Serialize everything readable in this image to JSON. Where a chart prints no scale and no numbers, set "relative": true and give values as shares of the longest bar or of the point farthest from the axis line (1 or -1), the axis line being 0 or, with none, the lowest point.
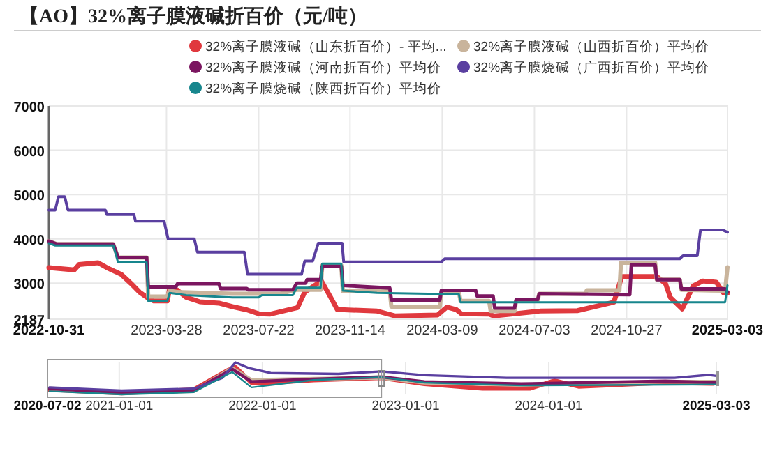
{
  "chart_data": [
    {
      "type": "line",
      "title": "【AO】32%离子膜液碱折百价（元/吨）",
      "legend": "top",
      "grid": true,
      "xlim": [
        "2022-10-31",
        "2025-03-03"
      ],
      "xticks": [
        {
          "value": "2022-10-31",
          "label": "2022-10-31"
        },
        {
          "value": "2023-03-28",
          "label": "2023-03-28"
        },
        {
          "value": "2023-07-22",
          "label": "2023-07-22"
        },
        {
          "value": "2023-11-14",
          "label": "2023-11-14"
        },
        {
          "value": "2024-03-09",
          "label": "2024-03-09"
        },
        {
          "value": "2024-07-03",
          "label": "2024-07-03"
        },
        {
          "value": "2024-10-27",
          "label": "2024-10-27"
        },
        {
          "value": "2025-03-03",
          "label": "2025-03-03"
        }
      ],
      "ylim": [
        2187,
        7000
      ],
      "yticks": [
        2187,
        3000,
        4000,
        5000,
        6000,
        7000
      ],
      "series": [
        {
          "name": "32%离子膜液碱（山东折百价）- 平均...",
          "color": "#e0393e",
          "x": [
            "2022-10-31",
            "2022-12-02",
            "2022-12-08",
            "2023-01-01",
            "2023-01-12",
            "2023-01-30",
            "2023-02-11",
            "2023-02-22",
            "2023-03-06",
            "2023-03-12",
            "2023-03-29",
            "2023-04-01",
            "2023-04-10",
            "2023-04-22",
            "2023-05-09",
            "2023-06-02",
            "2023-06-19",
            "2023-07-07",
            "2023-07-22",
            "2023-08-05",
            "2023-08-17",
            "2023-09-09",
            "2023-09-18",
            "2023-10-09",
            "2023-10-20",
            "2023-10-29",
            "2023-11-07",
            "2023-12-18",
            "2024-01-10",
            "2024-03-03",
            "2024-03-15",
            "2024-03-27",
            "2024-04-02",
            "2024-05-07",
            "2024-05-13",
            "2024-07-10",
            "2024-08-26",
            "2024-10-11",
            "2024-10-21",
            "2024-12-04",
            "2024-12-15",
            "2024-12-21",
            "2025-01-05",
            "2025-01-19",
            "2025-01-31",
            "2025-02-17",
            "2025-02-26",
            "2025-03-03"
          ],
          "values": [
            3350,
            3300,
            3420,
            3460,
            3350,
            3200,
            3000,
            2800,
            2650,
            2600,
            2600,
            2880,
            2850,
            2680,
            2580,
            2550,
            2470,
            2400,
            2310,
            2300,
            2350,
            2450,
            2800,
            3050,
            2700,
            2400,
            2400,
            2370,
            2260,
            2280,
            2460,
            2400,
            2310,
            2300,
            2260,
            2370,
            2380,
            2570,
            3150,
            3150,
            2990,
            2680,
            2420,
            2940,
            3050,
            3020,
            2780,
            2780
          ]
        },
        {
          "name": "32%离子膜液碱（山西折百价）平均价",
          "color": "#c9b49c",
          "x": [
            "2022-10-31",
            "2022-11-10",
            "2023-01-20",
            "2023-01-26",
            "2023-03-03",
            "2023-03-05",
            "2023-03-29",
            "2023-04-01",
            "2023-04-10",
            "2023-06-19",
            "2023-08-17",
            "2023-09-08",
            "2023-10-08",
            "2023-10-10",
            "2023-11-03",
            "2023-11-05",
            "2024-01-03",
            "2024-01-05",
            "2024-03-06",
            "2024-03-08",
            "2024-03-30",
            "2024-04-01",
            "2024-05-07",
            "2024-05-09",
            "2024-06-08",
            "2024-06-10",
            "2024-07-07",
            "2024-07-09",
            "2024-09-05",
            "2024-09-07",
            "2024-10-18",
            "2024-10-20",
            "2024-12-02",
            "2024-12-04",
            "2025-01-02",
            "2025-01-04",
            "2025-02-28",
            "2025-03-03"
          ],
          "values": [
            3950,
            3880,
            3880,
            3580,
            3580,
            2700,
            2700,
            2830,
            2800,
            2760,
            2760,
            2850,
            2850,
            3400,
            3400,
            2820,
            2820,
            2470,
            2470,
            2800,
            2800,
            2600,
            2600,
            2370,
            2370,
            2600,
            2600,
            2760,
            2760,
            2840,
            2840,
            3460,
            3460,
            3080,
            3080,
            2850,
            2830,
            3360
          ]
        },
        {
          "name": "32%离子膜液碱（河南折百价）平均价",
          "color": "#7b1660",
          "x": [
            "2022-10-31",
            "2022-11-10",
            "2023-01-20",
            "2023-01-26",
            "2023-03-03",
            "2023-03-05",
            "2023-04-09",
            "2023-04-11",
            "2023-06-02",
            "2023-06-04",
            "2023-07-07",
            "2023-07-09",
            "2023-09-03",
            "2023-09-08",
            "2023-09-19",
            "2023-09-21",
            "2023-10-08",
            "2023-10-10",
            "2023-11-03",
            "2023-11-05",
            "2024-01-03",
            "2024-01-05",
            "2024-03-06",
            "2024-03-08",
            "2024-04-20",
            "2024-04-22",
            "2024-05-12",
            "2024-05-14",
            "2024-06-08",
            "2024-06-10",
            "2024-07-07",
            "2024-07-09",
            "2024-10-31",
            "2024-11-02",
            "2024-12-02",
            "2024-12-04",
            "2025-01-02",
            "2025-01-04",
            "2025-02-28",
            "2025-03-03"
          ],
          "values": [
            3950,
            3880,
            3880,
            3580,
            3580,
            2920,
            2920,
            2990,
            2990,
            2880,
            2880,
            2850,
            2850,
            3000,
            3000,
            3080,
            3080,
            3380,
            3380,
            2950,
            2890,
            2620,
            2620,
            2840,
            2840,
            2710,
            2710,
            2440,
            2440,
            2630,
            2630,
            2760,
            2740,
            3410,
            3410,
            3080,
            3080,
            2870,
            2870,
            2800
          ]
        },
        {
          "name": "32%离子膜烧碱（广西折百价）平均价",
          "color": "#5a3fa0",
          "x": [
            "2022-10-31",
            "2022-11-08",
            "2022-11-12",
            "2022-11-20",
            "2022-11-24",
            "2023-01-10",
            "2023-01-12",
            "2023-02-15",
            "2023-02-17",
            "2023-03-25",
            "2023-03-30",
            "2023-05-02",
            "2023-05-06",
            "2023-07-04",
            "2023-07-08",
            "2023-09-14",
            "2023-09-18",
            "2023-09-28",
            "2023-10-05",
            "2023-11-04",
            "2023-11-06",
            "2024-03-08",
            "2024-03-12",
            "2025-01-02",
            "2025-01-06",
            "2025-01-24",
            "2025-01-28",
            "2025-02-25",
            "2025-03-03"
          ],
          "values": [
            4650,
            4650,
            4950,
            4950,
            4650,
            4650,
            4550,
            4550,
            4400,
            4400,
            4000,
            4000,
            3700,
            3700,
            3200,
            3200,
            3500,
            3500,
            3900,
            3900,
            3480,
            3480,
            3550,
            3550,
            3620,
            3620,
            4200,
            4200,
            4150
          ]
        },
        {
          "name": "32%离子膜烧碱（陕西折百价）平均价",
          "color": "#17868d",
          "x": [
            "2022-10-31",
            "2022-11-08",
            "2023-01-20",
            "2023-01-26",
            "2023-03-03",
            "2023-03-05",
            "2023-03-29",
            "2023-04-01",
            "2023-04-22",
            "2023-06-19",
            "2023-07-22",
            "2023-07-26",
            "2023-09-03",
            "2023-09-08",
            "2023-10-08",
            "2023-10-10",
            "2023-11-03",
            "2023-11-05",
            "2023-12-18",
            "2024-03-30",
            "2024-04-01",
            "2025-02-28",
            "2025-03-03"
          ],
          "values": [
            3900,
            3850,
            3850,
            3470,
            3470,
            2600,
            2600,
            2780,
            2730,
            2680,
            2680,
            2730,
            2730,
            2900,
            2900,
            3440,
            3440,
            2830,
            2780,
            2750,
            2570,
            2570,
            2950
          ]
        }
      ]
    },
    {
      "type": "line",
      "relative": true,
      "grid": "x",
      "xlim": [
        "2020-07-02",
        "2025-03-03"
      ],
      "xticks": [
        {
          "value": "2020-07-02",
          "label": "2020-07-02"
        },
        {
          "value": "2021-01-01",
          "label": "2021-01-01"
        },
        {
          "value": "2022-01-01",
          "label": "2022-01-01"
        },
        {
          "value": "2023-01-01",
          "label": "2023-01-01"
        },
        {
          "value": "2024-01-01",
          "label": "2024-01-01"
        },
        {
          "value": "2025-03-03",
          "label": "2025-03-03"
        }
      ],
      "series": [
        {
          "color": "#e0393e",
          "x": [
            "2020-07-07",
            "2021-01-07",
            "2021-07-10",
            "2021-10-04",
            "2021-10-24",
            "2021-12-04",
            "2022-01-22",
            "2022-05-12",
            "2022-10-31",
            "2023-02-18",
            "2023-07-16",
            "2023-11-15",
            "2024-01-15",
            "2024-03-17",
            "2024-10-24",
            "2025-02-23"
          ],
          "values": [
            0.15,
            0.04,
            0.15,
            0.75,
            0.85,
            0.37,
            0.37,
            0.45,
            0.52,
            0.33,
            0.19,
            0.19,
            0.43,
            0.25,
            0.37,
            0.34
          ]
        },
        {
          "color": "#c9b49c",
          "x": [
            "2020-07-07",
            "2021-01-07",
            "2021-07-10",
            "2021-10-16",
            "2021-12-04",
            "2022-05-12",
            "2022-10-31",
            "2023-02-18",
            "2023-10-22",
            "2024-10-24",
            "2025-03-03"
          ],
          "values": [
            0.19,
            0.07,
            0.1,
            0.82,
            0.45,
            0.49,
            0.52,
            0.37,
            0.3,
            0.4,
            0.4
          ]
        },
        {
          "color": "#7b1660",
          "x": [
            "2020-07-07",
            "2021-01-07",
            "2021-07-10",
            "2021-10-16",
            "2021-12-04",
            "2022-05-12",
            "2022-10-31",
            "2023-02-18",
            "2023-10-22",
            "2024-10-24",
            "2025-03-03"
          ],
          "values": [
            0.18,
            0.06,
            0.12,
            0.79,
            0.4,
            0.48,
            0.55,
            0.4,
            0.33,
            0.42,
            0.37
          ]
        },
        {
          "color": "#5a3fa0",
          "x": [
            "2020-07-07",
            "2021-01-07",
            "2021-07-10",
            "2021-09-21",
            "2021-10-24",
            "2021-11-28",
            "2022-01-22",
            "2022-07-13",
            "2022-10-31",
            "2023-02-18",
            "2023-09-15",
            "2024-11-17",
            "2025-02-10",
            "2025-03-03"
          ],
          "values": [
            0.22,
            0.12,
            0.18,
            0.52,
            1.0,
            0.82,
            0.67,
            0.64,
            0.72,
            0.6,
            0.52,
            0.52,
            0.61,
            0.58
          ]
        },
        {
          "color": "#17868d",
          "x": [
            "2020-07-07",
            "2021-01-07",
            "2021-07-10",
            "2021-10-16",
            "2021-12-04",
            "2022-05-12",
            "2022-10-31",
            "2023-02-18",
            "2023-10-22",
            "2025-02-23",
            "2025-03-03"
          ],
          "values": [
            0.1,
            0.0,
            0.07,
            0.7,
            0.22,
            0.45,
            0.54,
            0.37,
            0.28,
            0.31,
            0.31
          ]
        }
      ]
    }
  ]
}
